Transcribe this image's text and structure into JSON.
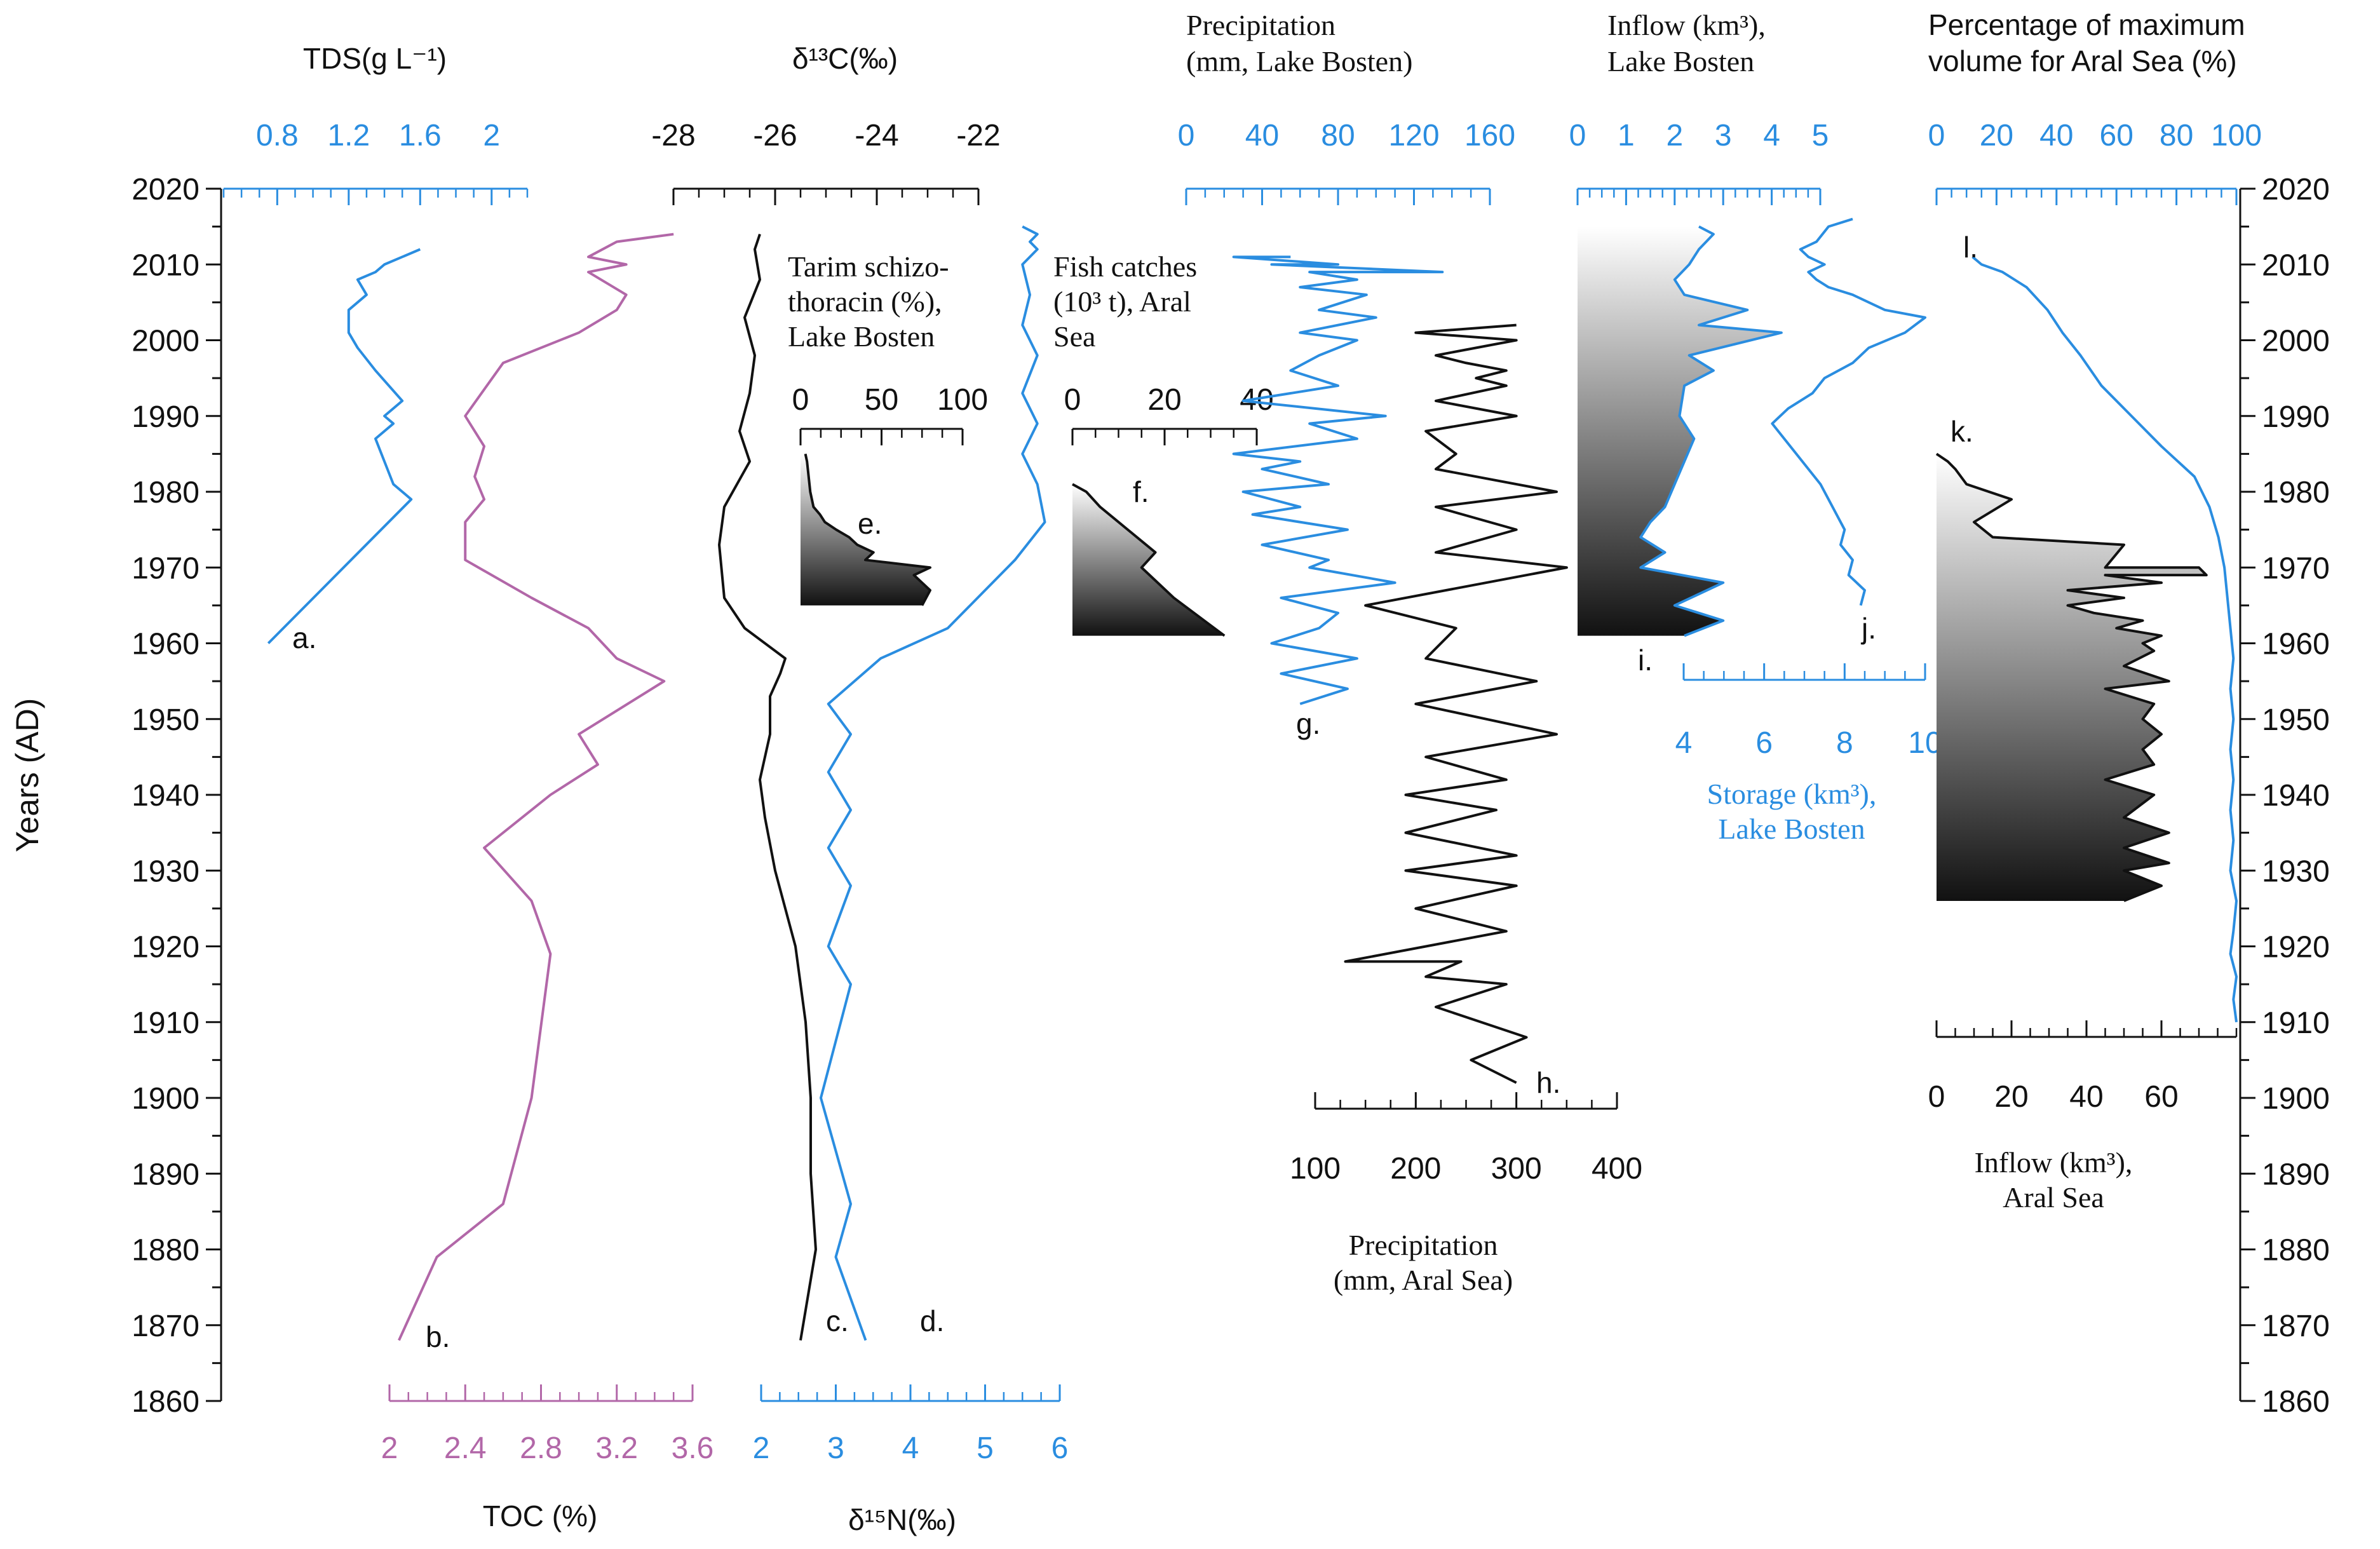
{
  "colors": {
    "blue": "#2a8de0",
    "purple": "#b267a8",
    "black": "#111111"
  },
  "chart_data": {
    "type": "line",
    "ylabel": "Years (AD)",
    "ylim": [
      1860,
      2020
    ],
    "ytick_labels": [
      "1860",
      "1870",
      "1880",
      "1890",
      "1900",
      "1910",
      "1920",
      "1930",
      "1940",
      "1950",
      "1960",
      "1970",
      "1980",
      "1990",
      "2000",
      "2010",
      "2020"
    ],
    "panels": [
      {
        "id": "a",
        "letter": "a.",
        "title_lines": [
          "TDS(g L⁻¹)"
        ],
        "axis_pos": "top",
        "xlim": [
          0.5,
          2.2
        ],
        "ticks": [
          "0.8",
          "1.2",
          "1.6",
          "2"
        ],
        "color": "#2a8de0",
        "series": [
          {
            "x": [
              0.75,
              1.55,
              1.45,
              1.4,
              1.35,
              1.45,
              1.4,
              1.5,
              1.35,
              1.25,
              1.2,
              1.2,
              1.3,
              1.25,
              1.35,
              1.4,
              1.5,
              1.6
            ],
            "y": [
              1960,
              1979,
              1981,
              1984,
              1987,
              1989,
              1990,
              1992,
              1996,
              1999,
              2001,
              2004,
              2006,
              2008,
              2009,
              2010,
              2011,
              2012
            ]
          }
        ]
      },
      {
        "id": "b",
        "letter": "b.",
        "title_lines": [
          "TOC (%)"
        ],
        "axis_pos": "bottom",
        "xlim": [
          2,
          3.6
        ],
        "ticks": [
          "2",
          "2.4",
          "2.8",
          "3.2",
          "3.6"
        ],
        "color": "#b267a8",
        "series": [
          {
            "x": [
              2.05,
              2.25,
              2.6,
              2.75,
              2.85,
              2.75,
              2.5,
              2.85,
              3.1,
              3.0,
              3.45,
              3.2,
              3.05,
              2.75,
              2.4,
              2.4,
              2.5,
              2.45,
              2.5,
              2.4,
              2.6,
              3.0,
              3.2,
              3.25,
              3.05,
              3.25,
              3.05,
              3.2,
              3.5
            ],
            "y": [
              1868,
              1879,
              1886,
              1900,
              1919,
              1926,
              1933,
              1940,
              1944,
              1948,
              1955,
              1958,
              1962,
              1966,
              1971,
              1976,
              1979,
              1982,
              1986,
              1990,
              1997,
              2001,
              2004,
              2006,
              2009,
              2010,
              2011,
              2013,
              2014
            ]
          }
        ]
      },
      {
        "id": "c",
        "letter": "c.",
        "title_lines": [
          "δ¹⁵N(‰)"
        ],
        "axis_pos": "bottom",
        "xlim": [
          2,
          6
        ],
        "ticks": [
          "2",
          "3",
          "4",
          "5",
          "6"
        ],
        "color": "#2a8de0",
        "series": [
          {
            "x": [
              3.4,
              3.0,
              3.2,
              2.8,
              3.2,
              2.9,
              3.2,
              2.9,
              3.2,
              2.9,
              3.2,
              2.9,
              3.6,
              4.5,
              5.0,
              5.4,
              5.8,
              5.7,
              5.5,
              5.7,
              5.5,
              5.7,
              5.5,
              5.6,
              5.5,
              5.7,
              5.6,
              5.7,
              5.5
            ],
            "y": [
              1868,
              1879,
              1886,
              1900,
              1915,
              1920,
              1928,
              1933,
              1938,
              1943,
              1948,
              1952,
              1958,
              1962,
              1967,
              1971,
              1976,
              1981,
              1985,
              1989,
              1993,
              1998,
              2002,
              2006,
              2010,
              2012,
              2013,
              2014,
              2015
            ]
          }
        ]
      },
      {
        "id": "d",
        "letter": "d.",
        "title_lines": [
          "δ¹³C(‰)"
        ],
        "axis_pos": "top",
        "xlim": [
          -28,
          -22
        ],
        "ticks": [
          "-28",
          "-26",
          "-24",
          "-22"
        ],
        "color": "#111111",
        "series": [
          {
            "x": [
              -25.5,
              -25.2,
              -25.3,
              -25.3,
              -25.4,
              -25.6,
              -26.0,
              -26.2,
              -26.3,
              -26.1,
              -26.1,
              -25.9,
              -25.8,
              -26.6,
              -27.0,
              -27.1,
              -27.0,
              -26.5,
              -26.7,
              -26.5,
              -26.4,
              -26.6,
              -26.3,
              -26.4,
              -26.3
            ],
            "y": [
              1868,
              1880,
              1890,
              1900,
              1910,
              1920,
              1930,
              1937,
              1942,
              1948,
              1953,
              1956,
              1958,
              1962,
              1966,
              1973,
              1978,
              1984,
              1988,
              1993,
              1998,
              2003,
              2008,
              2012,
              2014
            ]
          }
        ]
      },
      {
        "id": "e",
        "letter": "e.",
        "title_lines": [
          "Tarim schizo-",
          "thoracin  (%),",
          "Lake Bosten"
        ],
        "axis_pos": "top",
        "xlim": [
          0,
          100
        ],
        "ticks": [
          "0",
          "50",
          "100"
        ],
        "color": "#111111",
        "series": [
          {
            "x": [
              75,
              80,
              70,
              80,
              40,
              45,
              35,
              30,
              22,
              15,
              12,
              8,
              6,
              5,
              4,
              3
            ],
            "y": [
              1965,
              1967,
              1969,
              1970,
              1971,
              1972,
              1973,
              1974,
              1975,
              1976,
              1977,
              1978,
              1980,
              1982,
              1984,
              1985
            ]
          }
        ]
      },
      {
        "id": "f",
        "letter": "f.",
        "title_lines": [
          "Fish catches",
          "(10³ t), Aral",
          "Sea"
        ],
        "axis_pos": "top",
        "xlim": [
          0,
          40
        ],
        "ticks": [
          "0",
          "20",
          "40"
        ],
        "color": "#111111",
        "series": [
          {
            "x": [
              33,
              22,
              15,
              18,
              14,
              10,
              6,
              3,
              0
            ],
            "y": [
              1961,
              1966,
              1970,
              1972,
              1974,
              1976,
              1978,
              1980,
              1981
            ]
          }
        ]
      },
      {
        "id": "g",
        "letter": "g.",
        "title_lines": [
          "Precipitation",
          "(mm, Lake Bosten)"
        ],
        "axis_pos": "top",
        "xlim": [
          0,
          160
        ],
        "ticks": [
          "0",
          "40",
          "80",
          "120",
          "160"
        ],
        "color": "#2a8de0",
        "series": [
          {
            "x": [
              60,
              85,
              50,
              90,
              45,
              70,
              80,
              50,
              110,
              65,
              75,
              40,
              85,
              35,
              60,
              30,
              75,
              40,
              60,
              25,
              90,
              65,
              105,
              30,
              80,
              55,
              70,
              90,
              60,
              100,
              70,
              95,
              60,
              90,
              65,
              135,
              45,
              80,
              25,
              55
            ],
            "y": [
              1952,
              1954,
              1956,
              1958,
              1960,
              1962,
              1964,
              1966,
              1968,
              1970,
              1971,
              1973,
              1975,
              1977,
              1978,
              1980,
              1981,
              1983,
              1984,
              1985,
              1987,
              1989,
              1990,
              1992,
              1994,
              1996,
              1998,
              2000,
              2001,
              2003,
              2004,
              2006,
              2007,
              2008,
              2009,
              2009,
              2010,
              2010,
              2011,
              2011
            ]
          }
        ]
      },
      {
        "id": "h",
        "letter": "h.",
        "title_lines": [
          "Precipitation",
          "(mm, Aral Sea)"
        ],
        "axis_pos": "bottom",
        "xlim": [
          100,
          400
        ],
        "ticks": [
          "100",
          "200",
          "300",
          "400"
        ],
        "color": "#111111",
        "series": [
          {
            "x": [
              300,
              255,
              310,
              220,
              290,
              210,
              245,
              130,
              290,
              200,
              300,
              190,
              300,
              190,
              280,
              190,
              290,
              210,
              340,
              200,
              320,
              210,
              240,
              150,
              350,
              220,
              300,
              220,
              340,
              220,
              240,
              210,
              300,
              220,
              290,
              260,
              290,
              250,
              220,
              300,
              200,
              300
            ],
            "y": [
              1902,
              1905,
              1908,
              1912,
              1915,
              1916,
              1918,
              1918,
              1922,
              1925,
              1928,
              1930,
              1932,
              1935,
              1938,
              1940,
              1942,
              1945,
              1948,
              1952,
              1955,
              1958,
              1962,
              1965,
              1970,
              1972,
              1975,
              1978,
              1980,
              1983,
              1985,
              1988,
              1990,
              1992,
              1994,
              1995,
              1996,
              1997,
              1998,
              2000,
              2001,
              2002
            ]
          }
        ]
      },
      {
        "id": "i",
        "letter": "i.",
        "title_lines": [
          "Inflow (km³),",
          "Lake Bosten"
        ],
        "axis_pos": "top",
        "xlim": [
          0,
          5
        ],
        "ticks": [
          "0",
          "1",
          "2",
          "3",
          "4",
          "5"
        ],
        "color": "#2a8de0",
        "series": [
          {
            "x": [
              2.2,
              3.0,
              2.0,
              3.0,
              1.3,
              1.8,
              1.3,
              1.5,
              1.8,
              2.0,
              2.2,
              2.4,
              2.1,
              2.2,
              2.8,
              2.3,
              4.2,
              2.5,
              3.5,
              2.2,
              2.0,
              2.3,
              2.5,
              2.8,
              2.5
            ],
            "y": [
              1961,
              1963,
              1965,
              1968,
              1970,
              1972,
              1974,
              1976,
              1978,
              1981,
              1984,
              1987,
              1990,
              1994,
              1996,
              1998,
              2001,
              2002,
              2004,
              2006,
              2008,
              2010,
              2012,
              2014,
              2015
            ]
          }
        ]
      },
      {
        "id": "j",
        "letter": "j.",
        "title_lines": [
          "Storage (km³),",
          "Lake Bosten"
        ],
        "axis_pos": "bottom",
        "xlim": [
          4,
          10
        ],
        "ticks": [
          "4",
          "6",
          "8",
          "10"
        ],
        "color": "#2a8de0",
        "series": [
          {
            "x": [
              8.4,
              8.5,
              8.1,
              8.2,
              7.9,
              8.0,
              7.7,
              7.4,
              6.8,
              6.2,
              6.6,
              7.2,
              7.5,
              8.2,
              8.6,
              9.5,
              10.0,
              9.0,
              8.2,
              7.6,
              7.3,
              7.1,
              7.5,
              7.1,
              6.9,
              7.3,
              7.6,
              8.2
            ],
            "y": [
              1965,
              1967,
              1969,
              1971,
              1973,
              1975,
              1978,
              1981,
              1985,
              1989,
              1991,
              1993,
              1995,
              1997,
              1999,
              2001,
              2003,
              2004,
              2006,
              2007,
              2008,
              2009,
              2010,
              2011,
              2012,
              2013,
              2015,
              2016
            ]
          }
        ]
      },
      {
        "id": "k",
        "letter": "k.",
        "title_lines": [
          "Inflow (km³),",
          "Aral Sea"
        ],
        "axis_pos": "bottom",
        "xlim": [
          0,
          80
        ],
        "ticks": [
          "0",
          "20",
          "40",
          "60"
        ],
        "color": "#111111",
        "series": [
          {
            "x": [
              50,
              60,
              50,
              62,
              50,
              62,
              50,
              58,
              45,
              58,
              55,
              60,
              55,
              58,
              45,
              62,
              50,
              58,
              55,
              60,
              48,
              55,
              42,
              35,
              50,
              35,
              60,
              45,
              72,
              70,
              45,
              50,
              15,
              10,
              20,
              8,
              5,
              3,
              0
            ],
            "y": [
              1926,
              1928,
              1930,
              1931,
              1933,
              1935,
              1937,
              1940,
              1942,
              1944,
              1946,
              1948,
              1950,
              1952,
              1954,
              1955,
              1957,
              1959,
              1960,
              1961,
              1962,
              1963,
              1964,
              1965,
              1966,
              1967,
              1968,
              1969,
              1969,
              1970,
              1970,
              1973,
              1974,
              1976,
              1979,
              1981,
              1983,
              1984,
              1985
            ]
          }
        ]
      },
      {
        "id": "l",
        "letter": "l.",
        "title_lines": [
          "Percentage of maximum",
          "volume for Aral Sea (%)"
        ],
        "axis_pos": "top",
        "xlim": [
          0,
          100
        ],
        "ticks": [
          "0",
          "20",
          "40",
          "60",
          "80",
          "100"
        ],
        "color": "#2a8de0",
        "series": [
          {
            "x": [
              100,
              99,
              100,
              98,
              99,
              100,
              98,
              99,
              98,
              99,
              98,
              99,
              98,
              99,
              98,
              97,
              96,
              94,
              91,
              86,
              75,
              65,
              55,
              48,
              42,
              37,
              30,
              22,
              15,
              12
            ],
            "y": [
              1910,
              1913,
              1916,
              1919,
              1922,
              1926,
              1930,
              1934,
              1938,
              1942,
              1946,
              1950,
              1954,
              1958,
              1962,
              1966,
              1970,
              1974,
              1978,
              1982,
              1986,
              1990,
              1994,
              1998,
              2001,
              2004,
              2007,
              2009,
              2010,
              2011
            ]
          }
        ]
      }
    ]
  }
}
